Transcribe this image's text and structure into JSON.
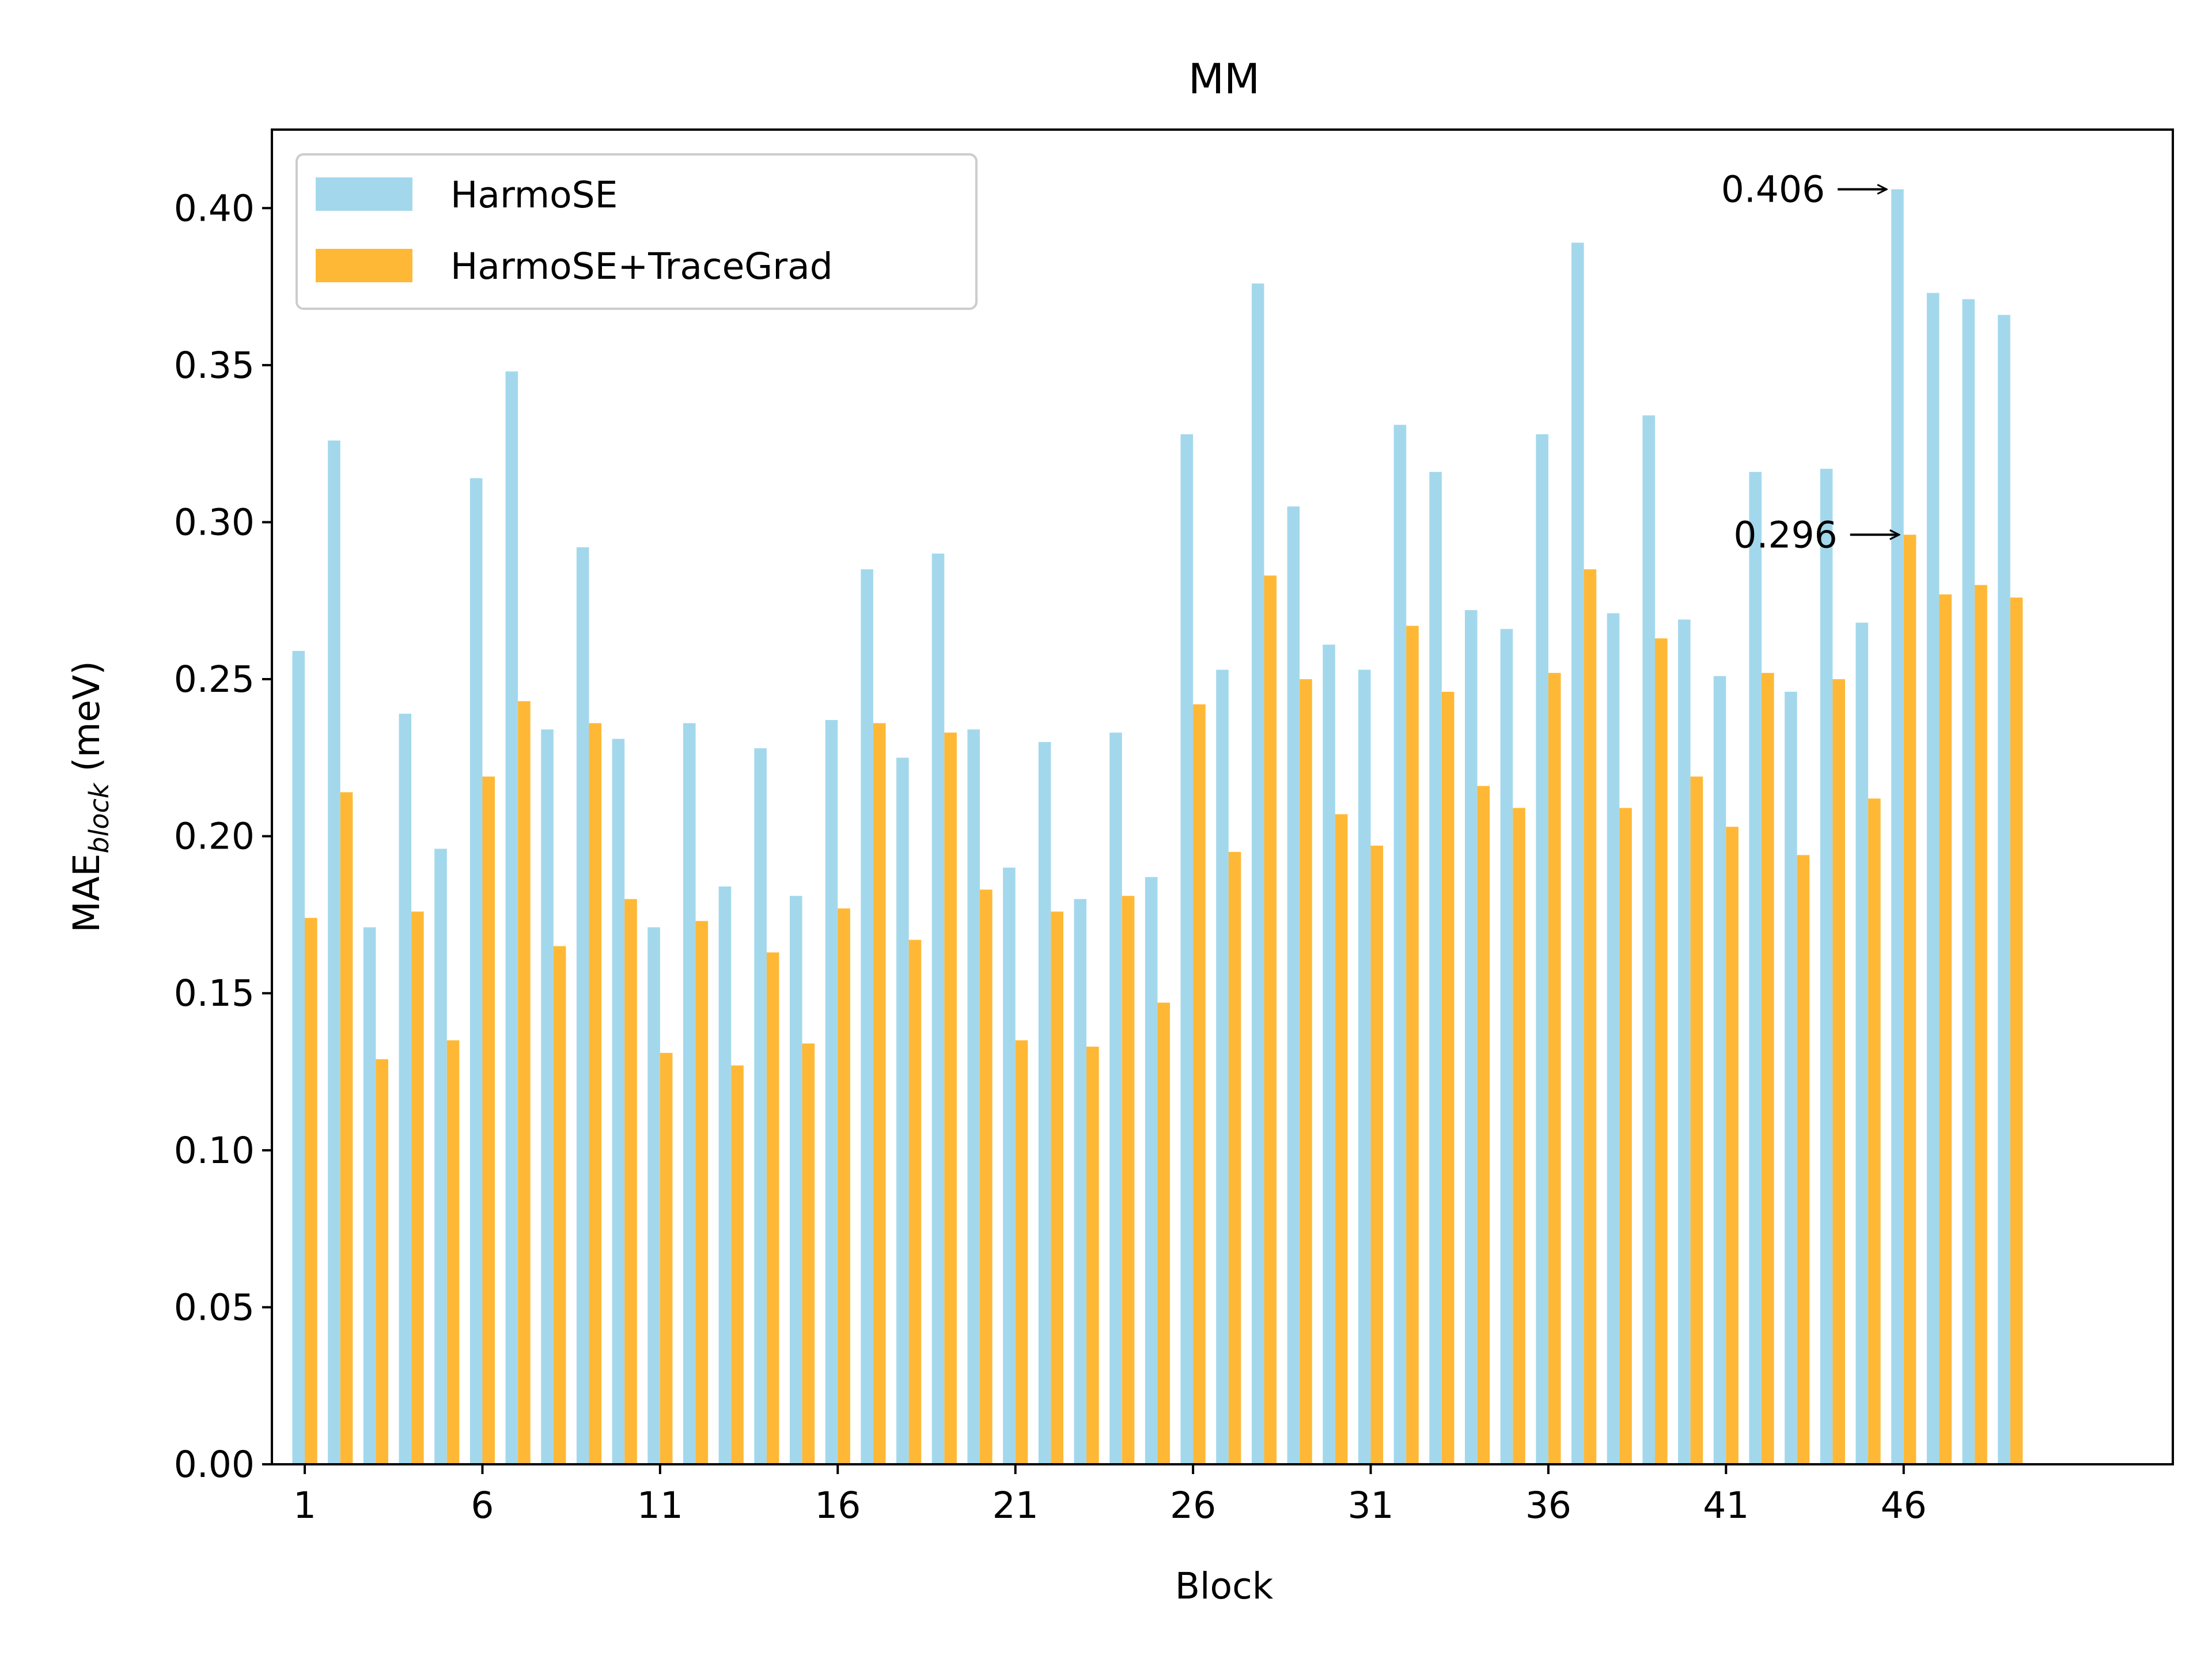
{
  "chart_data": {
    "type": "bar",
    "title": "MM",
    "xlabel": "Block",
    "ylabel": {
      "main": "MAE",
      "subscript": "block",
      "unit": " (meV)"
    },
    "ylim": [
      0,
      0.425
    ],
    "yticks": [
      "0.00",
      "0.05",
      "0.10",
      "0.15",
      "0.20",
      "0.25",
      "0.30",
      "0.35",
      "0.40"
    ],
    "xticks": [
      1,
      6,
      11,
      16,
      21,
      26,
      31,
      36,
      41,
      46
    ],
    "x_range": [
      -0.75,
      52.75
    ],
    "grid": false,
    "legend_position": "top-left",
    "categories": [
      1,
      2,
      3,
      4,
      5,
      6,
      7,
      8,
      9,
      10,
      11,
      12,
      13,
      14,
      15,
      16,
      17,
      18,
      19,
      20,
      21,
      22,
      23,
      24,
      25,
      26,
      27,
      28,
      29,
      30,
      31,
      32,
      33,
      34,
      35,
      36,
      37,
      38,
      39,
      40,
      41,
      42,
      43,
      44,
      45,
      46,
      47,
      48,
      49
    ],
    "series": [
      {
        "name": "HarmoSE",
        "color": "#a3d8ec",
        "values": [
          0.259,
          0.326,
          0.171,
          0.239,
          0.196,
          0.314,
          0.348,
          0.234,
          0.292,
          0.231,
          0.171,
          0.236,
          0.184,
          0.228,
          0.181,
          0.237,
          0.285,
          0.225,
          0.29,
          0.234,
          0.19,
          0.23,
          0.18,
          0.233,
          0.187,
          0.328,
          0.253,
          0.376,
          0.305,
          0.261,
          0.253,
          0.331,
          0.316,
          0.272,
          0.266,
          0.328,
          0.389,
          0.271,
          0.334,
          0.269,
          0.251,
          0.316,
          0.246,
          0.317,
          0.268,
          0.406,
          0.373,
          0.371,
          0.366
        ]
      },
      {
        "name": "HarmoSE+TraceGrad",
        "color": "#ffb836",
        "values": [
          0.174,
          0.214,
          0.129,
          0.176,
          0.135,
          0.219,
          0.243,
          0.165,
          0.236,
          0.18,
          0.131,
          0.173,
          0.127,
          0.163,
          0.134,
          0.177,
          0.236,
          0.167,
          0.233,
          0.183,
          0.135,
          0.176,
          0.133,
          0.181,
          0.147,
          0.242,
          0.195,
          0.283,
          0.25,
          0.207,
          0.197,
          0.267,
          0.246,
          0.216,
          0.209,
          0.252,
          0.285,
          0.209,
          0.263,
          0.219,
          0.203,
          0.252,
          0.194,
          0.25,
          0.212,
          0.296,
          0.277,
          0.28,
          0.276
        ]
      }
    ],
    "annotations": [
      {
        "text": "0.406",
        "series": 0,
        "block": 46,
        "value": 0.406
      },
      {
        "text": "0.296",
        "series": 1,
        "block": 46,
        "value": 0.296
      }
    ]
  }
}
